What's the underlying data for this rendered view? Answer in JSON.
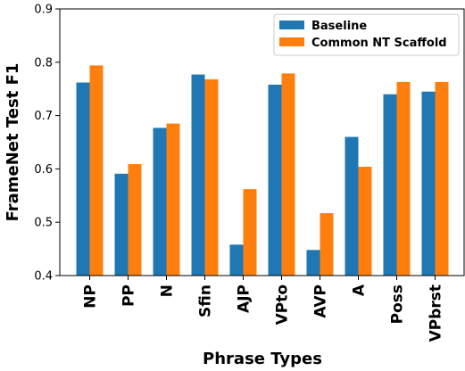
{
  "chart_data": {
    "type": "bar",
    "xlabel": "Phrase Types",
    "ylabel": "FrameNet Test F1",
    "ylim": [
      0.4,
      0.9
    ],
    "yticks": [
      "0.4",
      "0.5",
      "0.6",
      "0.7",
      "0.8",
      "0.9"
    ],
    "categories": [
      "NP",
      "PP",
      "N",
      "Sfin",
      "AJP",
      "VPto",
      "AVP",
      "A",
      "Poss",
      "VPbrst"
    ],
    "series": [
      {
        "name": "Baseline",
        "color": "#1f77b4",
        "values": [
          0.762,
          0.591,
          0.677,
          0.777,
          0.458,
          0.758,
          0.448,
          0.66,
          0.74,
          0.745
        ]
      },
      {
        "name": "Common NT Scaffold",
        "color": "#ff7f0e",
        "values": [
          0.794,
          0.609,
          0.685,
          0.768,
          0.562,
          0.779,
          0.517,
          0.604,
          0.763,
          0.763
        ]
      }
    ],
    "legend_position": "top-right",
    "grid": false
  }
}
